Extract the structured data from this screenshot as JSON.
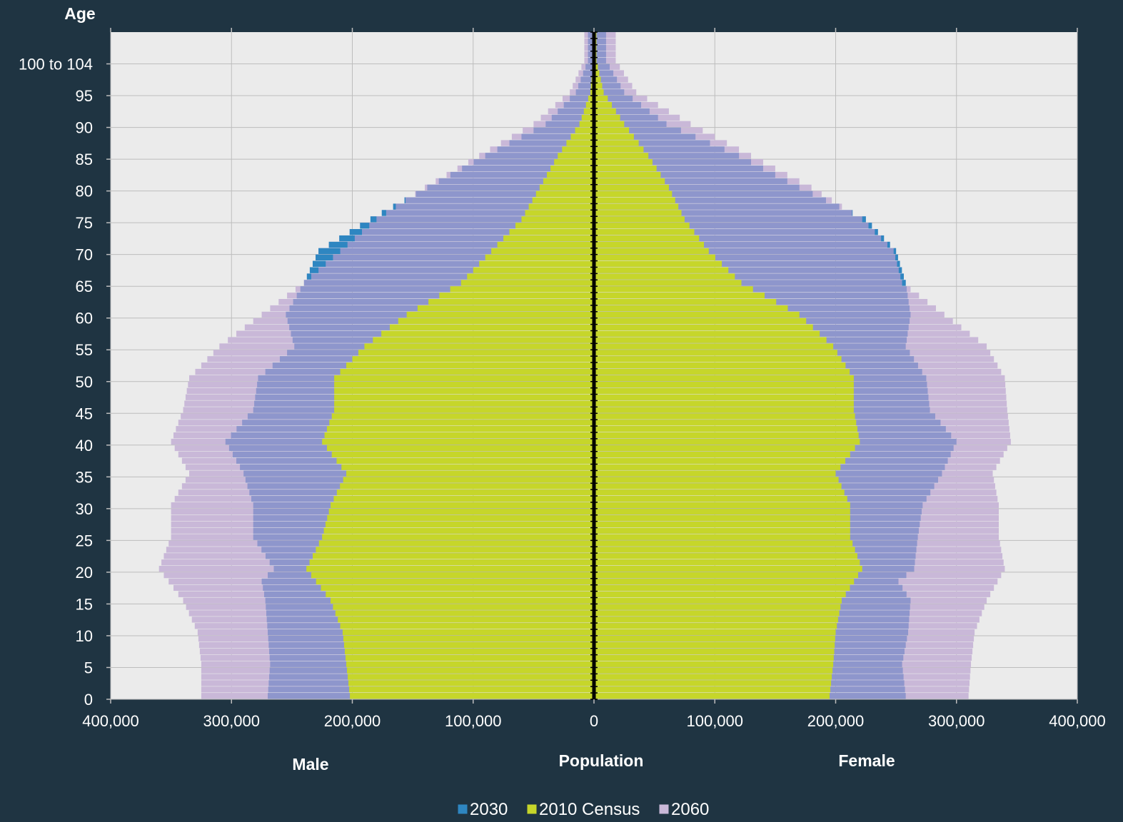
{
  "chart_data": {
    "type": "bar",
    "orientation": "population-pyramid",
    "ylabel": "Age",
    "xlabel": "Population",
    "left_label": "Male",
    "right_label": "Female",
    "xlim": [
      -400000,
      400000
    ],
    "x_ticks": [
      -400000,
      -300000,
      -200000,
      -100000,
      0,
      100000,
      200000,
      300000,
      400000
    ],
    "x_tick_labels": [
      "400,000",
      "300,000",
      "200,000",
      "100,000",
      "0",
      "100,000",
      "200,000",
      "300,000",
      "400,000"
    ],
    "y_ticks": [
      0,
      5,
      10,
      15,
      20,
      25,
      30,
      35,
      40,
      45,
      50,
      55,
      60,
      65,
      70,
      75,
      80,
      85,
      90,
      95,
      100
    ],
    "y_tick_labels": [
      "0",
      "5",
      "10",
      "15",
      "20",
      "25",
      "30",
      "35",
      "40",
      "45",
      "50",
      "55",
      "60",
      "65",
      "70",
      "75",
      "80",
      "85",
      "90",
      "95",
      "100 to 104"
    ],
    "grid": true,
    "legend_position": "bottom",
    "colors": {
      "2030": "#2e86c1",
      "2010 Census": "#c6d62a",
      "2060": "#c9b8d8",
      "2030_overlap": "#8e96cc"
    },
    "series": [
      {
        "name": "2030",
        "male": [
          {
            "age": 0,
            "value": 270000
          },
          {
            "age": 5,
            "value": 268000
          },
          {
            "age": 10,
            "value": 270000
          },
          {
            "age": 15,
            "value": 272000
          },
          {
            "age": 18,
            "value": 275000
          },
          {
            "age": 20,
            "value": 265000
          },
          {
            "age": 25,
            "value": 282000
          },
          {
            "age": 30,
            "value": 282000
          },
          {
            "age": 35,
            "value": 290000
          },
          {
            "age": 40,
            "value": 305000
          },
          {
            "age": 45,
            "value": 282000
          },
          {
            "age": 50,
            "value": 278000
          },
          {
            "age": 55,
            "value": 248000
          },
          {
            "age": 60,
            "value": 255000
          },
          {
            "age": 65,
            "value": 240000
          },
          {
            "age": 70,
            "value": 228000
          },
          {
            "age": 75,
            "value": 185000
          },
          {
            "age": 80,
            "value": 138000
          },
          {
            "age": 85,
            "value": 90000
          },
          {
            "age": 90,
            "value": 40000
          },
          {
            "age": 95,
            "value": 15000
          },
          {
            "age": 100,
            "value": 5000
          }
        ],
        "female": [
          {
            "age": 0,
            "value": 258000
          },
          {
            "age": 5,
            "value": 255000
          },
          {
            "age": 10,
            "value": 260000
          },
          {
            "age": 15,
            "value": 262000
          },
          {
            "age": 18,
            "value": 252000
          },
          {
            "age": 20,
            "value": 265000
          },
          {
            "age": 25,
            "value": 268000
          },
          {
            "age": 30,
            "value": 272000
          },
          {
            "age": 35,
            "value": 288000
          },
          {
            "age": 40,
            "value": 300000
          },
          {
            "age": 45,
            "value": 278000
          },
          {
            "age": 50,
            "value": 275000
          },
          {
            "age": 55,
            "value": 258000
          },
          {
            "age": 60,
            "value": 262000
          },
          {
            "age": 65,
            "value": 258000
          },
          {
            "age": 70,
            "value": 250000
          },
          {
            "age": 75,
            "value": 225000
          },
          {
            "age": 80,
            "value": 170000
          },
          {
            "age": 85,
            "value": 120000
          },
          {
            "age": 90,
            "value": 60000
          },
          {
            "age": 95,
            "value": 25000
          },
          {
            "age": 100,
            "value": 10000
          }
        ]
      },
      {
        "name": "2010 Census",
        "male": [
          {
            "age": 0,
            "value": 202000
          },
          {
            "age": 5,
            "value": 205000
          },
          {
            "age": 10,
            "value": 208000
          },
          {
            "age": 15,
            "value": 218000
          },
          {
            "age": 20,
            "value": 238000
          },
          {
            "age": 25,
            "value": 225000
          },
          {
            "age": 30,
            "value": 218000
          },
          {
            "age": 35,
            "value": 205000
          },
          {
            "age": 40,
            "value": 225000
          },
          {
            "age": 45,
            "value": 215000
          },
          {
            "age": 50,
            "value": 215000
          },
          {
            "age": 55,
            "value": 190000
          },
          {
            "age": 60,
            "value": 155000
          },
          {
            "age": 65,
            "value": 110000
          },
          {
            "age": 70,
            "value": 85000
          },
          {
            "age": 75,
            "value": 60000
          },
          {
            "age": 80,
            "value": 45000
          },
          {
            "age": 85,
            "value": 30000
          },
          {
            "age": 90,
            "value": 12000
          },
          {
            "age": 95,
            "value": 3000
          },
          {
            "age": 100,
            "value": 500
          }
        ],
        "female": [
          {
            "age": 0,
            "value": 195000
          },
          {
            "age": 5,
            "value": 198000
          },
          {
            "age": 10,
            "value": 200000
          },
          {
            "age": 15,
            "value": 205000
          },
          {
            "age": 20,
            "value": 222000
          },
          {
            "age": 25,
            "value": 212000
          },
          {
            "age": 30,
            "value": 212000
          },
          {
            "age": 35,
            "value": 200000
          },
          {
            "age": 40,
            "value": 220000
          },
          {
            "age": 45,
            "value": 215000
          },
          {
            "age": 50,
            "value": 215000
          },
          {
            "age": 55,
            "value": 198000
          },
          {
            "age": 60,
            "value": 170000
          },
          {
            "age": 65,
            "value": 122000
          },
          {
            "age": 70,
            "value": 95000
          },
          {
            "age": 75,
            "value": 75000
          },
          {
            "age": 80,
            "value": 62000
          },
          {
            "age": 85,
            "value": 45000
          },
          {
            "age": 90,
            "value": 25000
          },
          {
            "age": 95,
            "value": 8000
          },
          {
            "age": 100,
            "value": 2000
          }
        ]
      },
      {
        "name": "2060",
        "male": [
          {
            "age": 0,
            "value": 325000
          },
          {
            "age": 5,
            "value": 325000
          },
          {
            "age": 10,
            "value": 328000
          },
          {
            "age": 15,
            "value": 340000
          },
          {
            "age": 20,
            "value": 360000
          },
          {
            "age": 25,
            "value": 350000
          },
          {
            "age": 30,
            "value": 350000
          },
          {
            "age": 35,
            "value": 335000
          },
          {
            "age": 40,
            "value": 350000
          },
          {
            "age": 45,
            "value": 340000
          },
          {
            "age": 50,
            "value": 335000
          },
          {
            "age": 55,
            "value": 310000
          },
          {
            "age": 60,
            "value": 275000
          },
          {
            "age": 65,
            "value": 240000
          },
          {
            "age": 70,
            "value": 210000
          },
          {
            "age": 75,
            "value": 180000
          },
          {
            "age": 80,
            "value": 140000
          },
          {
            "age": 85,
            "value": 95000
          },
          {
            "age": 90,
            "value": 50000
          },
          {
            "age": 95,
            "value": 20000
          },
          {
            "age": 100,
            "value": 8000
          }
        ],
        "female": [
          {
            "age": 0,
            "value": 310000
          },
          {
            "age": 5,
            "value": 312000
          },
          {
            "age": 10,
            "value": 315000
          },
          {
            "age": 15,
            "value": 325000
          },
          {
            "age": 20,
            "value": 340000
          },
          {
            "age": 25,
            "value": 335000
          },
          {
            "age": 30,
            "value": 335000
          },
          {
            "age": 35,
            "value": 330000
          },
          {
            "age": 40,
            "value": 345000
          },
          {
            "age": 45,
            "value": 342000
          },
          {
            "age": 50,
            "value": 340000
          },
          {
            "age": 55,
            "value": 325000
          },
          {
            "age": 60,
            "value": 290000
          },
          {
            "age": 65,
            "value": 255000
          },
          {
            "age": 70,
            "value": 248000
          },
          {
            "age": 75,
            "value": 222000
          },
          {
            "age": 80,
            "value": 180000
          },
          {
            "age": 85,
            "value": 130000
          },
          {
            "age": 90,
            "value": 80000
          },
          {
            "age": 95,
            "value": 35000
          },
          {
            "age": 100,
            "value": 18000
          }
        ]
      }
    ]
  }
}
